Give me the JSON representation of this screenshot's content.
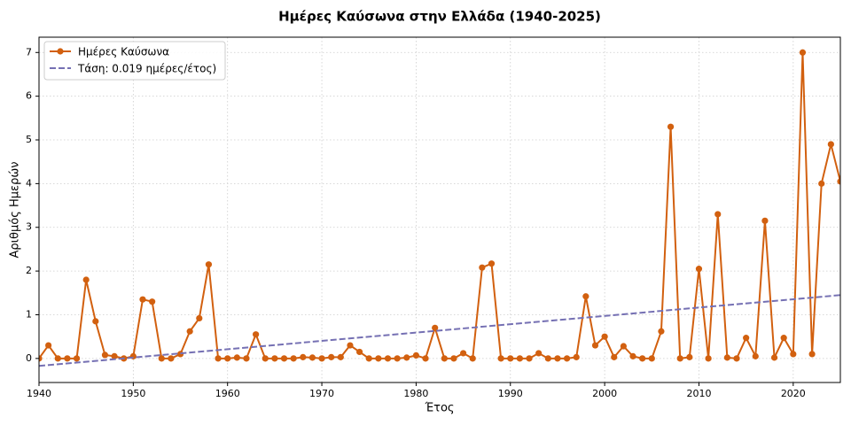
{
  "chart_data": {
    "type": "line",
    "title": "Ημέρες Καύσωνα στην Ελλάδα (1940-2025)",
    "x_label": "Έτος",
    "y_label": "Αριθμός Ημερών",
    "x": [
      1940,
      1941,
      1942,
      1943,
      1944,
      1945,
      1946,
      1947,
      1948,
      1949,
      1950,
      1951,
      1952,
      1953,
      1954,
      1955,
      1956,
      1957,
      1958,
      1959,
      1960,
      1961,
      1962,
      1963,
      1964,
      1965,
      1966,
      1967,
      1968,
      1969,
      1970,
      1971,
      1972,
      1973,
      1974,
      1975,
      1976,
      1977,
      1978,
      1979,
      1980,
      1981,
      1982,
      1983,
      1984,
      1985,
      1986,
      1987,
      1988,
      1989,
      1990,
      1991,
      1992,
      1993,
      1994,
      1995,
      1996,
      1997,
      1998,
      1999,
      2000,
      2001,
      2002,
      2003,
      2004,
      2005,
      2006,
      2007,
      2008,
      2009,
      2010,
      2011,
      2012,
      2013,
      2014,
      2015,
      2016,
      2017,
      2018,
      2019,
      2020,
      2021,
      2022,
      2023,
      2024,
      2025
    ],
    "series": [
      {
        "name": "Ημέρες Καύσωνα",
        "color": "#d2600f",
        "values": [
          0,
          0.3,
          0,
          0,
          0,
          1.8,
          0.85,
          0.08,
          0.05,
          0,
          0.05,
          1.35,
          1.3,
          0,
          0,
          0.1,
          0.62,
          0.92,
          2.15,
          0,
          0,
          0.02,
          0,
          0.55,
          0,
          0,
          0,
          0,
          0.03,
          0.02,
          0,
          0.03,
          0.03,
          0.3,
          0.15,
          0,
          0,
          0,
          0,
          0.02,
          0.07,
          0,
          0.7,
          0,
          0,
          0.12,
          0,
          2.08,
          2.17,
          0,
          0,
          0,
          0,
          0.12,
          0,
          0,
          0,
          0.03,
          1.42,
          0.3,
          0.5,
          0.03,
          0.28,
          0.05,
          0,
          0,
          0.62,
          5.3,
          0,
          0.03,
          2.05,
          0,
          3.3,
          0.02,
          0,
          0.47,
          0.05,
          3.15,
          0.02,
          0.47,
          0.1,
          7.0,
          0.1,
          4.0,
          4.9,
          4.05
        ]
      }
    ],
    "trend": {
      "name": "Τάση: 0.019 ημέρες/έτος)",
      "color": "#7570b3",
      "x": [
        1940,
        2025
      ],
      "values": [
        -0.17,
        1.45
      ]
    },
    "xlim": [
      1940,
      2025
    ],
    "xticks": [
      1940,
      1950,
      1960,
      1970,
      1980,
      1990,
      2000,
      2010,
      2020
    ],
    "ylim": [
      -0.55,
      7.35
    ],
    "yticks": [
      0,
      1,
      2,
      3,
      4,
      5,
      6,
      7
    ],
    "grid": true,
    "legend": "upper left"
  }
}
